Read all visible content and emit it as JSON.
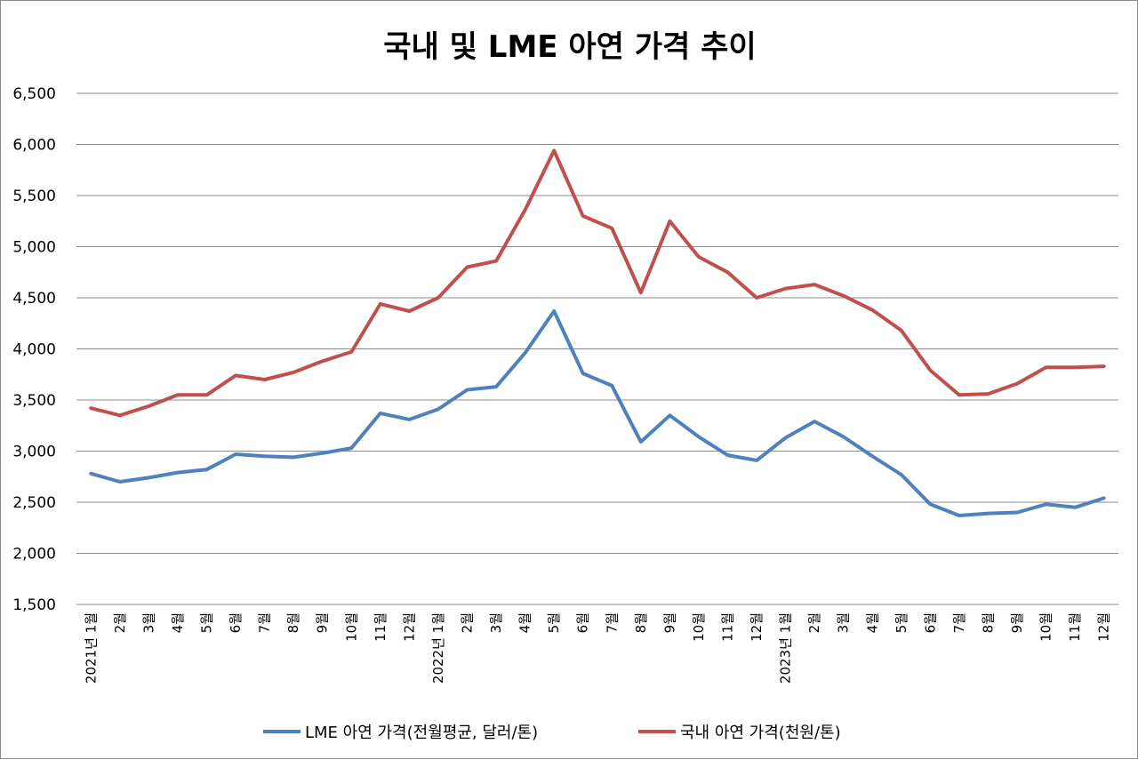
{
  "chart_data": {
    "type": "line",
    "title": "국내 및 LME 아연 가격 추이",
    "xlabel": "",
    "ylabel": "",
    "ylim": [
      1500,
      6500
    ],
    "yticks": [
      "1,500",
      "2,000",
      "2,500",
      "3,000",
      "3,500",
      "4,000",
      "4,500",
      "5,000",
      "5,500",
      "6,000",
      "6,500"
    ],
    "ytick_values": [
      1500,
      2000,
      2500,
      3000,
      3500,
      4000,
      4500,
      5000,
      5500,
      6000,
      6500
    ],
    "grid": true,
    "legend_position": "bottom",
    "categories": [
      "2021년 1월",
      "2월",
      "3월",
      "4월",
      "5월",
      "6월",
      "7월",
      "8월",
      "9월",
      "10월",
      "11월",
      "12월",
      "2022년 1월",
      "2월",
      "3월",
      "4월",
      "5월",
      "6월",
      "7월",
      "8월",
      "9월",
      "10월",
      "11월",
      "12월",
      "2023년 1월",
      "2월",
      "3월",
      "4월",
      "5월",
      "6월",
      "7월",
      "8월",
      "9월",
      "10월",
      "11월",
      "12월"
    ],
    "series": [
      {
        "name": "LME 아연 가격(전월평균, 달러/톤)",
        "color": "#4f81bd",
        "values": [
          2780,
          2700,
          2740,
          2790,
          2820,
          2970,
          2950,
          2940,
          2980,
          3030,
          3370,
          3310,
          3410,
          3600,
          3630,
          3960,
          4370,
          3760,
          3640,
          3090,
          3350,
          3140,
          2960,
          2910,
          3130,
          3290,
          3140,
          2950,
          2770,
          2480,
          2370,
          2390,
          2400,
          2480,
          2450,
          2540
        ]
      },
      {
        "name": "국내 아연 가격(천원/톤)",
        "color": "#c0504d",
        "values": [
          3420,
          3350,
          3440,
          3550,
          3550,
          3740,
          3700,
          3770,
          3880,
          3970,
          4440,
          4370,
          4500,
          4800,
          4860,
          5360,
          5940,
          5300,
          5180,
          4550,
          5250,
          4900,
          4750,
          4500,
          4590,
          4630,
          4520,
          4380,
          4180,
          3790,
          3550,
          3560,
          3660,
          3820,
          3820,
          3830
        ]
      }
    ]
  }
}
